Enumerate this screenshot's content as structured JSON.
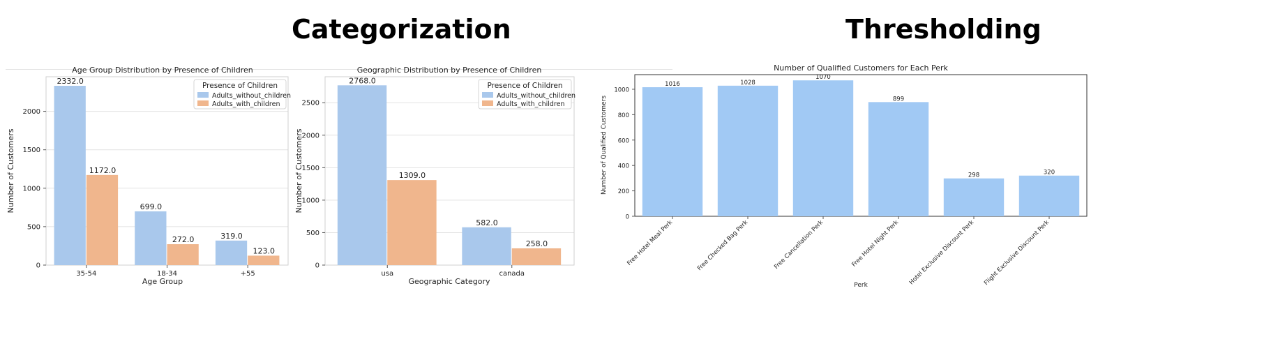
{
  "headings": {
    "left": "Categorization",
    "right": "Thresholding"
  },
  "chart_data": [
    {
      "type": "bar",
      "title": "Age Group Distribution by Presence of Children",
      "xlabel": "Age Group",
      "ylabel": "Number of Customers",
      "categories": [
        "35-54",
        "18-34",
        "+55"
      ],
      "series": [
        {
          "name": "Adults_without_children",
          "color": "#a9c8ec",
          "values": [
            2332.0,
            699.0,
            319.0
          ],
          "labels": [
            "2332.0",
            "699.0",
            "319.0"
          ]
        },
        {
          "name": "Adults_with_children",
          "color": "#f0b68d",
          "values": [
            1172.0,
            272.0,
            123.0
          ],
          "labels": [
            "1172.0",
            "272.0",
            "123.0"
          ]
        }
      ],
      "yticks": [
        0,
        500,
        1000,
        1500,
        2000
      ],
      "ylim": [
        0,
        2450
      ],
      "grid": true,
      "legend": {
        "title": "Presence of Children",
        "placement": "top-right"
      }
    },
    {
      "type": "bar",
      "title": "Geographic Distribution by Presence of Children",
      "xlabel": "Geographic Category",
      "ylabel": "Number of Customers",
      "categories": [
        "usa",
        "canada"
      ],
      "series": [
        {
          "name": "Adults_without_children",
          "color": "#a9c8ec",
          "values": [
            2768.0,
            582.0
          ],
          "labels": [
            "2768.0",
            "582.0"
          ]
        },
        {
          "name": "Adults_with_children",
          "color": "#f0b68d",
          "values": [
            1309.0,
            258.0
          ],
          "labels": [
            "1309.0",
            "258.0"
          ]
        }
      ],
      "yticks": [
        0,
        500,
        1000,
        1500,
        2000,
        2500
      ],
      "ylim": [
        0,
        2900
      ],
      "grid": true,
      "legend": {
        "title": "Presence of Children",
        "placement": "top-right"
      }
    },
    {
      "type": "bar",
      "title": "Number of Qualified Customers for Each Perk",
      "xlabel": "Perk",
      "ylabel": "Number of Qualified Customers",
      "categories": [
        "Free Hotel Meal Perk",
        "Free Checked Bag Perk",
        "Free Cancellation Perk",
        "Free Hotel Night Perk",
        "Hotel Exclusive Discount Perk",
        "Flight Exclusive Discount Perk"
      ],
      "values": [
        1016,
        1028,
        1070,
        899,
        298,
        320
      ],
      "labels": [
        "1016",
        "1028",
        "1070",
        "899",
        "298",
        "320"
      ],
      "color": "#a1c9f4",
      "yticks": [
        0,
        200,
        400,
        600,
        800,
        1000
      ],
      "ylim": [
        0,
        1115
      ],
      "grid": false
    }
  ]
}
